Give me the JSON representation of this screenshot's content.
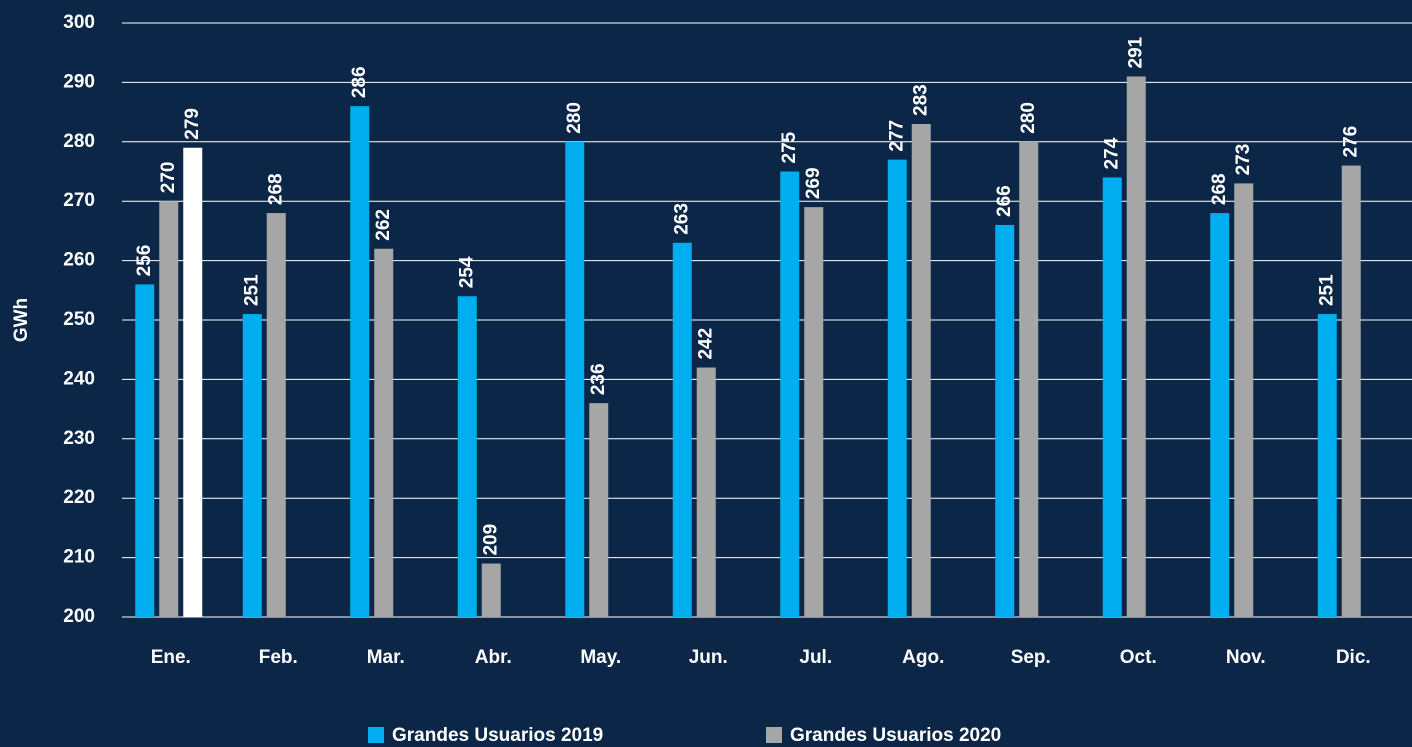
{
  "chart_data": {
    "type": "bar",
    "y_label": "GWh",
    "categories": [
      "Ene.",
      "Feb.",
      "Mar.",
      "Abr.",
      "May.",
      "Jun.",
      "Jul.",
      "Ago.",
      "Sep.",
      "Oct.",
      "Nov.",
      "Dic."
    ],
    "series": [
      {
        "name": "Grandes Usuarios 2019",
        "color": "#00adee",
        "values": [
          256,
          251,
          286,
          254,
          280,
          263,
          275,
          277,
          266,
          274,
          268,
          251
        ]
      },
      {
        "name": "Grandes Usuarios 2020",
        "color": "#a6a6a6",
        "values": [
          270,
          268,
          262,
          209,
          236,
          242,
          269,
          283,
          280,
          291,
          273,
          276
        ]
      },
      {
        "color": "#ffffff",
        "values": [
          279,
          null,
          null,
          null,
          null,
          null,
          null,
          null,
          null,
          null,
          null,
          null
        ]
      }
    ],
    "ylim": [
      200,
      300
    ],
    "yticks": [
      200,
      210,
      220,
      230,
      240,
      250,
      260,
      270,
      280,
      290,
      300
    ],
    "grid": true
  }
}
